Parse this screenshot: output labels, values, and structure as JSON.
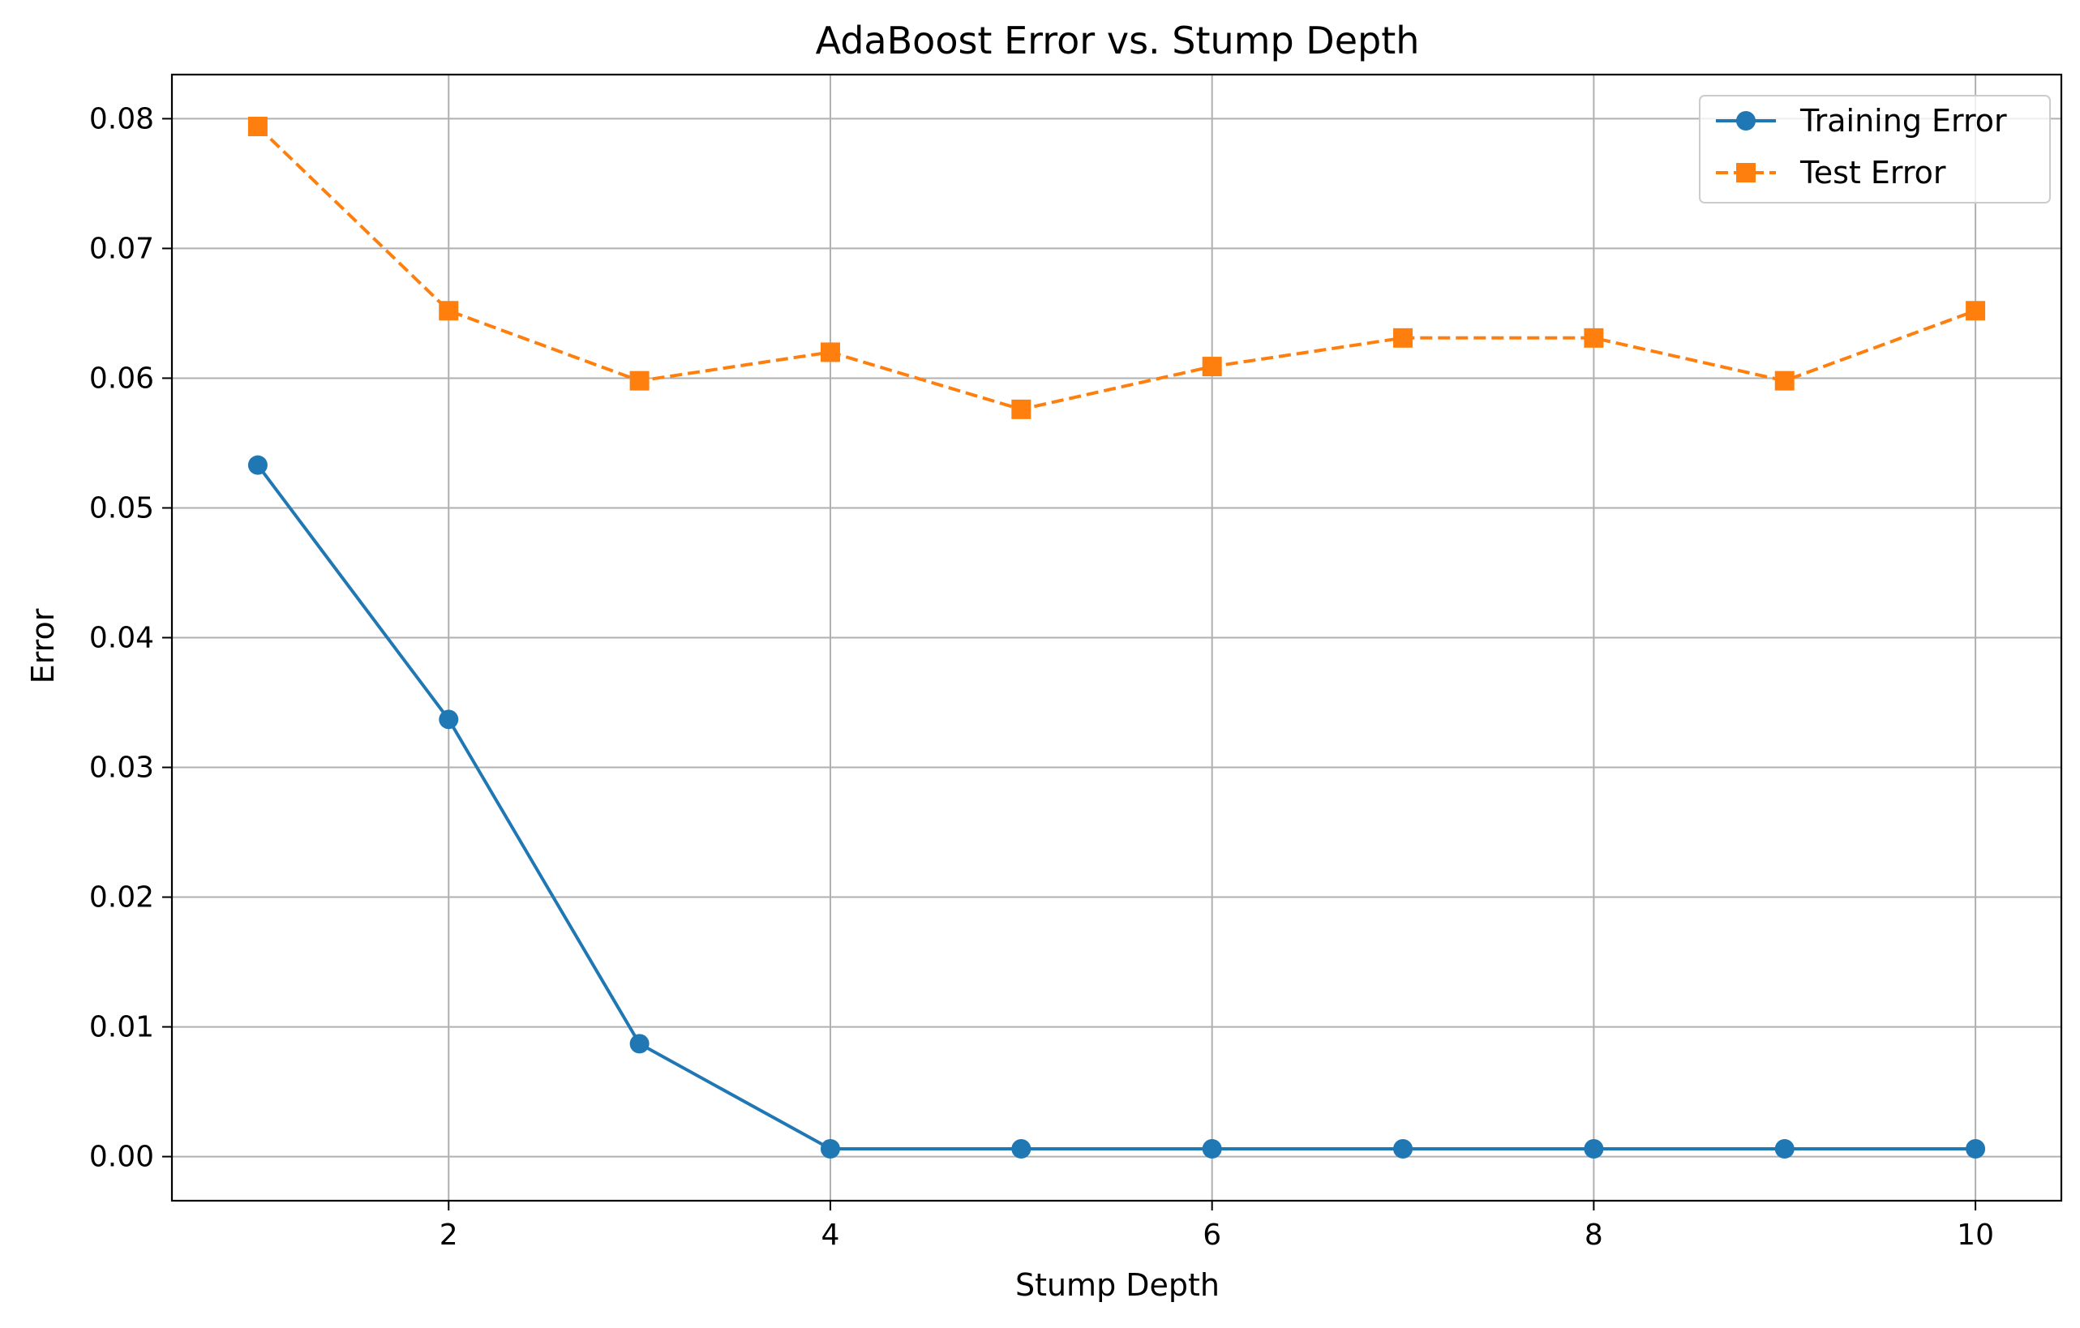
{
  "chart_data": {
    "type": "line",
    "title": "AdaBoost Error vs. Stump Depth",
    "xlabel": "Stump Depth",
    "ylabel": "Error",
    "x": [
      1,
      2,
      3,
      4,
      5,
      6,
      7,
      8,
      9,
      10
    ],
    "xlim": [
      0.55,
      10.45
    ],
    "ylim": [
      -0.0034,
      0.0834
    ],
    "xticks": [
      2,
      4,
      6,
      8,
      10
    ],
    "xtick_labels": [
      "2",
      "4",
      "6",
      "8",
      "10"
    ],
    "yticks": [
      0.0,
      0.01,
      0.02,
      0.03,
      0.04,
      0.05,
      0.06,
      0.07,
      0.08
    ],
    "ytick_labels": [
      "0.00",
      "0.01",
      "0.02",
      "0.03",
      "0.04",
      "0.05",
      "0.06",
      "0.07",
      "0.08"
    ],
    "grid": true,
    "legend_position": "top-right",
    "series": [
      {
        "name": "Training Error",
        "values": [
          0.0533,
          0.0337,
          0.0087,
          0.0006,
          0.0006,
          0.0006,
          0.0006,
          0.0006,
          0.0006,
          0.0006
        ],
        "color": "#1f77b4",
        "marker": "circle",
        "linestyle": "solid"
      },
      {
        "name": "Test Error",
        "values": [
          0.0794,
          0.0652,
          0.0598,
          0.062,
          0.0576,
          0.0609,
          0.0631,
          0.0631,
          0.0598,
          0.0652
        ],
        "color": "#ff7f0e",
        "marker": "square",
        "linestyle": "dashed"
      }
    ]
  }
}
